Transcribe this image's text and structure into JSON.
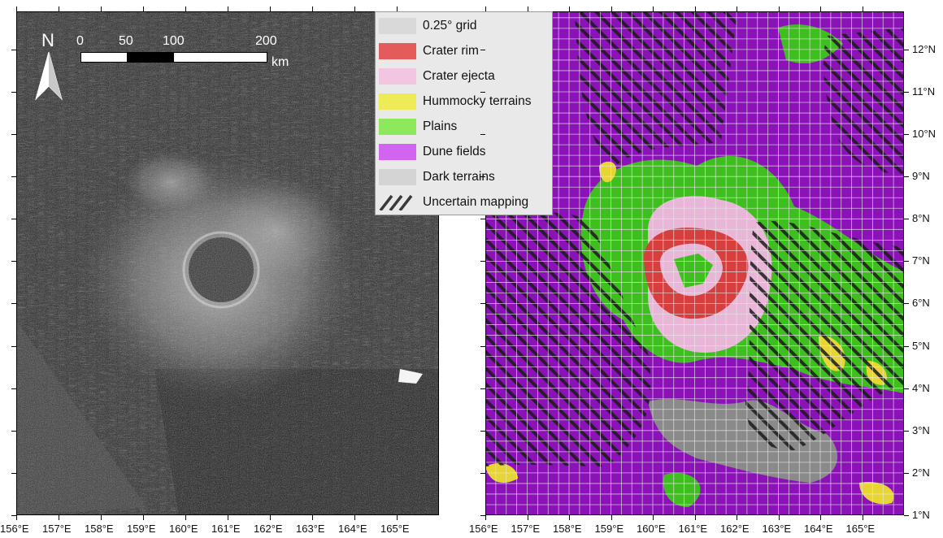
{
  "north_arrow": {
    "label": "N",
    "icon": "north-arrow-icon"
  },
  "scale_bar": {
    "ticks": [
      "0",
      "50",
      "100",
      "200"
    ],
    "unit": "km",
    "tick_values_km": [
      0,
      50,
      100,
      200
    ]
  },
  "legend": {
    "items": [
      {
        "label": "0.25° grid",
        "color": "#d9d9d9",
        "pattern": "grid"
      },
      {
        "label": "Crater rim",
        "color": "#e35b5b",
        "pattern": "solid"
      },
      {
        "label": "Crater ejecta",
        "color": "#f2c6e0",
        "pattern": "solid"
      },
      {
        "label": "Hummocky terrains",
        "color": "#eeeb57",
        "pattern": "solid"
      },
      {
        "label": "Plains",
        "color": "#8ee85b",
        "pattern": "solid"
      },
      {
        "label": "Dune fields",
        "color": "#d264f2",
        "pattern": "solid"
      },
      {
        "label": "Dark terrains",
        "color": "#d4d4d4",
        "pattern": "solid"
      },
      {
        "label": "Uncertain mapping",
        "color": "#3a3a3a",
        "pattern": "hatch"
      }
    ]
  },
  "axes": {
    "longitude_labels": [
      "156°E",
      "157°E",
      "158°E",
      "159°E",
      "160°E",
      "161°E",
      "162°E",
      "163°E",
      "164°E",
      "165°E"
    ],
    "latitude_labels": [
      "12°N",
      "11°N",
      "10°N",
      "9°N",
      "8°N",
      "7°N",
      "6°N",
      "5°N",
      "4°N",
      "3°N",
      "2°N",
      "1°N"
    ],
    "lon_range_deg": [
      156,
      166
    ],
    "lat_range_deg": [
      1,
      12.9
    ]
  },
  "colors": {
    "dune_base": "#8a12b7",
    "plains": "#3fbf1f",
    "rim": "#d73f3f",
    "ejecta": "#e8b6d6",
    "dark": "#8a8a8a",
    "hummocky": "#e6d534",
    "grid_line": "#e6e6e6"
  }
}
